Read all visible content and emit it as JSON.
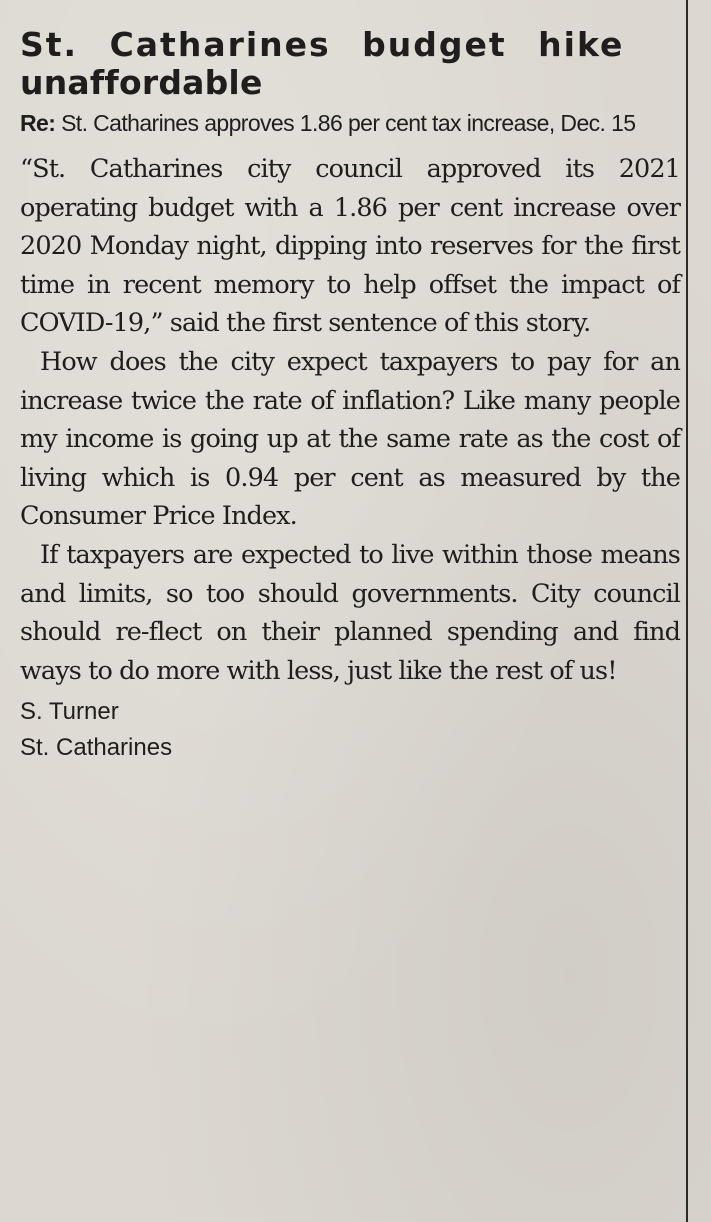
{
  "article": {
    "headline_line1": "St. Catharines budget hike",
    "headline_line2": "unaffordable",
    "re_label": "Re:",
    "re_text": "St. Catharines approves 1.86 per cent tax increase, Dec. 15",
    "paragraphs": [
      "“St. Catharines city council approved its 2021 operating budget with a 1.86 per cent increase over 2020 Monday night, dipping into reserves for the first time in recent memory to help offset the impact of COVID-19,” said the first sentence of this story.",
      "How does the city expect taxpayers to pay for an increase twice the rate of inflation? Like many people my income is going up at the same rate as the cost of living which is 0.94 per cent as measured by the Consumer Price Index.",
      "If taxpayers are expected to live within those means and limits, so too should governments. City council should re-flect on their planned spending and find ways to do more with less, just like the rest of us!"
    ],
    "author_name": "S. Turner",
    "author_city": "St. Catharines"
  }
}
